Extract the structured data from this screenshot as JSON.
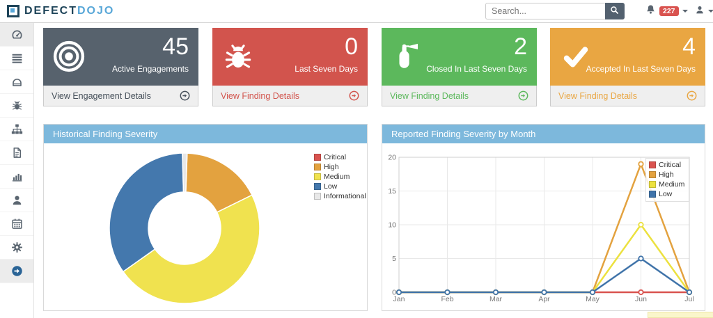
{
  "navbar": {
    "logo": {
      "text_primary": "DEFECT",
      "text_secondary": "DOJO",
      "color_primary": "#1e4459",
      "color_secondary": "#58a7d8"
    },
    "search": {
      "placeholder": "Search...",
      "button_color": "#53616f"
    },
    "notifications": {
      "count": "227",
      "badge_color": "#d9534f"
    }
  },
  "sidebar": {
    "items": [
      {
        "icon": "tachometer-icon",
        "active": true
      },
      {
        "icon": "list-icon",
        "active": false
      },
      {
        "icon": "inbox-icon",
        "active": false
      },
      {
        "icon": "bug-icon",
        "active": false
      },
      {
        "icon": "sitemap-icon",
        "active": false
      },
      {
        "icon": "file-icon",
        "active": false
      },
      {
        "icon": "bar-chart-icon",
        "active": false
      },
      {
        "icon": "user-icon",
        "active": false
      },
      {
        "icon": "calendar-icon",
        "active": false
      },
      {
        "icon": "gear-icon",
        "active": false
      },
      {
        "icon": "sign-out-icon",
        "active": true
      }
    ]
  },
  "cards": [
    {
      "value": "45",
      "label": "Active Engagements",
      "footer": "View Engagement Details",
      "color": "#57626d",
      "footer_text_color": "#46505a",
      "icon": "bullseye-icon"
    },
    {
      "value": "0",
      "label": "Last Seven Days",
      "footer": "View Finding Details",
      "color": "#d2544d",
      "footer_text_color": "#d2544d",
      "icon": "bug-icon"
    },
    {
      "value": "2",
      "label": "Closed In Last Seven Days",
      "footer": "View Finding Details",
      "color": "#5cb85c",
      "footer_text_color": "#5cb85c",
      "icon": "fire-extinguisher-icon"
    },
    {
      "value": "4",
      "label": "Accepted In Last Seven Days",
      "footer": "View Finding Details",
      "color": "#e9a642",
      "footer_text_color": "#e9a642",
      "icon": "check-icon"
    }
  ],
  "chart_data": [
    {
      "type": "pie",
      "donut": true,
      "title": "Historical Finding Severity",
      "labels": [
        "Critical",
        "High",
        "Medium",
        "Low",
        "Informational"
      ],
      "values": [
        0,
        17,
        47,
        34,
        1
      ],
      "colors": [
        "#d9534f",
        "#e3a23f",
        "#f0e24f",
        "#4478ad",
        "#e8e8e8"
      ],
      "legend_position": "right"
    },
    {
      "type": "line",
      "title": "Reported Finding Severity by Month",
      "categories": [
        "Jan",
        "Feb",
        "Mar",
        "Apr",
        "May",
        "Jun",
        "Jul"
      ],
      "series": [
        {
          "name": "Critical",
          "color": "#d9534f",
          "values": [
            0,
            0,
            0,
            0,
            0,
            0,
            0
          ]
        },
        {
          "name": "High",
          "color": "#e3a23f",
          "values": [
            0,
            0,
            0,
            0,
            0,
            19,
            0
          ]
        },
        {
          "name": "Medium",
          "color": "#ece13f",
          "values": [
            0,
            0,
            0,
            0,
            0,
            10,
            0
          ]
        },
        {
          "name": "Low",
          "color": "#3f73a9",
          "values": [
            0,
            0,
            0,
            0,
            0,
            5,
            0
          ]
        }
      ],
      "ylim": [
        0,
        20
      ],
      "yticks": [
        0,
        5,
        10,
        15,
        20
      ],
      "grid": true,
      "legend_position": "top-right"
    }
  ],
  "panel_header_color": "#7db8dc"
}
